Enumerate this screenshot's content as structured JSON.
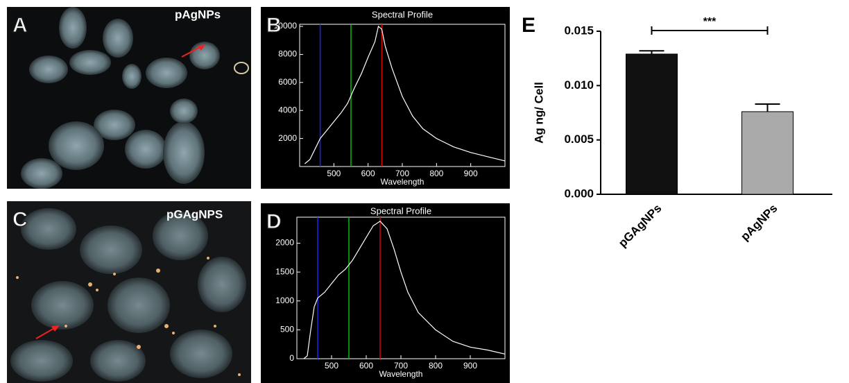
{
  "images": [
    {
      "letter": "A",
      "label": "pAgNPs"
    },
    {
      "letter": "C",
      "label": "pGAgNPS"
    }
  ],
  "chart_data": [
    {
      "type": "line",
      "panel_label": "B",
      "title": "Spectral Profile",
      "x_label": "Wavelength",
      "x": [
        415,
        430,
        450,
        460,
        480,
        500,
        520,
        540,
        560,
        580,
        600,
        620,
        630,
        640,
        650,
        670,
        700,
        730,
        760,
        800,
        850,
        900,
        950,
        1000
      ],
      "y": [
        200,
        500,
        1500,
        2000,
        2600,
        3200,
        3800,
        4500,
        5600,
        6600,
        7800,
        8900,
        10000,
        9800,
        8600,
        7000,
        5000,
        3600,
        2700,
        2000,
        1400,
        1000,
        700,
        400
      ],
      "color": "#ffffff",
      "xlim": [
        400,
        1000
      ],
      "xticks": [
        500,
        600,
        700,
        800,
        900
      ],
      "ylim": [
        0,
        10150
      ],
      "yticks": [
        2000,
        4000,
        6000,
        8000,
        10000
      ],
      "markers": [
        {
          "value": 460,
          "color": "#2020ff"
        },
        {
          "value": 550,
          "color": "#00c000"
        },
        {
          "value": 640,
          "color": "#e00000"
        }
      ]
    },
    {
      "type": "line",
      "panel_label": "D",
      "title": "Spectral Profile",
      "x_label": "Wavelength",
      "x": [
        420,
        430,
        440,
        450,
        460,
        480,
        500,
        520,
        540,
        560,
        580,
        600,
        620,
        640,
        660,
        680,
        700,
        720,
        750,
        800,
        850,
        900,
        950,
        1000
      ],
      "y": [
        0,
        50,
        500,
        900,
        1050,
        1150,
        1300,
        1450,
        1550,
        1700,
        1900,
        2100,
        2300,
        2380,
        2250,
        1900,
        1500,
        1150,
        800,
        500,
        300,
        200,
        150,
        80
      ],
      "color": "#ffffff",
      "xlim": [
        400,
        1000
      ],
      "xticks": [
        500,
        600,
        700,
        800,
        900
      ],
      "ylim": [
        0,
        2450
      ],
      "yticks": [
        0,
        500,
        1000,
        1500,
        2000
      ],
      "markers": [
        {
          "value": 460,
          "color": "#2020ff"
        },
        {
          "value": 550,
          "color": "#00c000"
        },
        {
          "value": 640,
          "color": "#e00000"
        }
      ]
    },
    {
      "type": "bar",
      "panel_label": "E",
      "y_label": "Ag ng/ Cell",
      "categories": [
        "pGAgNPs",
        "pAgNPs"
      ],
      "values": [
        0.0129,
        0.0076
      ],
      "errors": [
        0.0003,
        0.0007
      ],
      "colors": [
        "#111111",
        "#aaaaaa"
      ],
      "annotation": "***",
      "ylim": [
        0,
        0.015
      ],
      "yticks": [
        {
          "value": 0,
          "label": "0.000"
        },
        {
          "value": 0.005,
          "label": "0.005"
        },
        {
          "value": 0.01,
          "label": "0.010"
        },
        {
          "value": 0.015,
          "label": "0.015"
        }
      ]
    }
  ]
}
